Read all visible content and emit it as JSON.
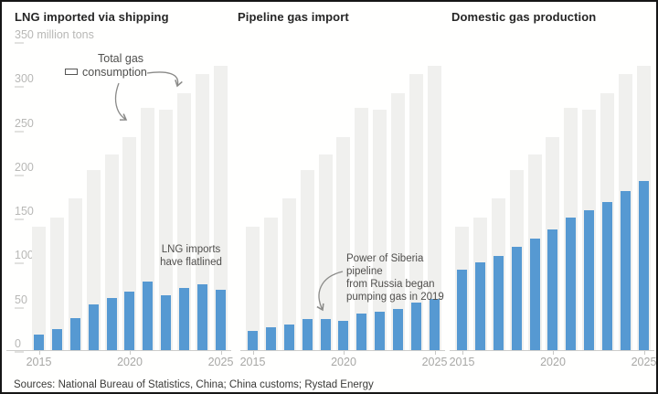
{
  "panels": [
    {
      "id": "lng",
      "title": "LNG imported via shipping"
    },
    {
      "id": "pipeline",
      "title": "Pipeline gas import"
    },
    {
      "id": "domestic",
      "title": "Domestic gas production"
    }
  ],
  "y_axis": {
    "ticks": [
      {
        "value": 350,
        "label": "350",
        "suffix": " million tons"
      },
      {
        "value": 300,
        "label": "300",
        "suffix": ""
      },
      {
        "value": 250,
        "label": "250",
        "suffix": ""
      },
      {
        "value": 200,
        "label": "200",
        "suffix": ""
      },
      {
        "value": 150,
        "label": "150",
        "suffix": ""
      },
      {
        "value": 100,
        "label": "100",
        "suffix": ""
      },
      {
        "value": 50,
        "label": "50",
        "suffix": ""
      },
      {
        "value": 0,
        "label": "0",
        "suffix": ""
      }
    ]
  },
  "x_axis": {
    "ticks": [
      {
        "index": 0,
        "label": "2015"
      },
      {
        "index": 5,
        "label": "2020"
      },
      {
        "index": 10,
        "label": "2025"
      }
    ]
  },
  "legend": {
    "line1": "Total gas",
    "line2": "consumption"
  },
  "annotations": {
    "lng": {
      "line1": "LNG imports",
      "line2": "have flatlined"
    },
    "pipeline": {
      "line1": "Power of Siberia pipeline",
      "line2": "from Russia began",
      "line3": "pumping gas in 2019"
    }
  },
  "source": "Sources: National Bureau of Statistics, China; China customs; Rystad Energy",
  "colors": {
    "bar_blue": "#5699d2",
    "bar_gray": "#f0f0ee",
    "title_text": "#262626",
    "axis_text": "#b8b8b6"
  },
  "chart_data": {
    "type": "bar",
    "x": [
      2015,
      2016,
      2017,
      2018,
      2019,
      2020,
      2021,
      2022,
      2023,
      2024,
      2025
    ],
    "ylim": [
      0,
      350
    ],
    "ylabel": "million tons",
    "grid": false,
    "legend_label": "Total gas consumption",
    "consumption_series": {
      "name": "Total gas consumption",
      "values": [
        140,
        150,
        172,
        204,
        222,
        241,
        274,
        272,
        291,
        313,
        322
      ]
    },
    "series": [
      {
        "name": "LNG imported via shipping",
        "values": [
          18,
          24,
          36,
          52,
          59,
          66,
          78,
          62,
          70,
          75,
          68
        ]
      },
      {
        "name": "Pipeline gas import",
        "values": [
          22,
          26,
          29,
          35,
          35,
          33,
          41,
          44,
          47,
          54,
          58
        ]
      },
      {
        "name": "Domestic gas production",
        "values": [
          91,
          99,
          107,
          117,
          126,
          137,
          150,
          158,
          168,
          180,
          192
        ]
      }
    ]
  }
}
